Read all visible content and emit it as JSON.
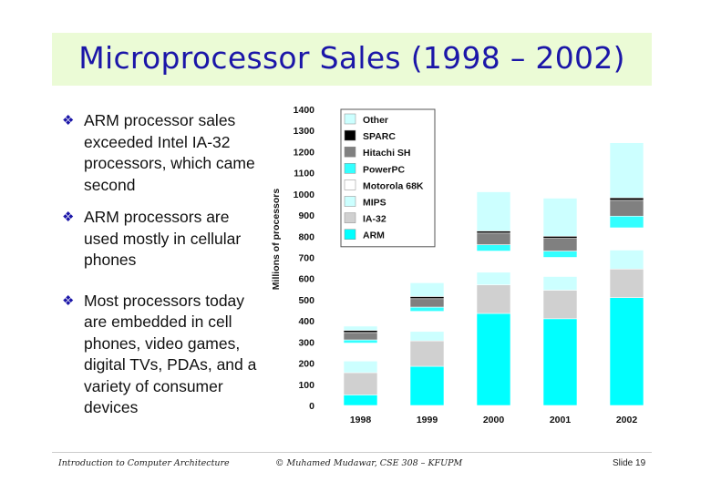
{
  "slide": {
    "title": "Microprocessor Sales (1998 – 2002)",
    "bullet_symbol": "❖",
    "bullets": [
      "ARM processor sales exceeded Intel IA-32 processors, which came second",
      "ARM processors are used mostly in cellular phones",
      "Most processors today are embedded in cell phones, video games, digital TVs, PDAs, and a variety of consumer devices"
    ],
    "footer_left": "Introduction to Computer Architecture",
    "footer_mid": "© Muhamed Mudawar, CSE 308 – KFUPM",
    "footer_right": "Slide 19"
  },
  "chart_data": {
    "type": "bar",
    "stacked": true,
    "title": "",
    "xlabel": "",
    "ylabel": "Millions of processors",
    "ylim": [
      0,
      1400
    ],
    "yticks": [
      0,
      100,
      200,
      300,
      400,
      500,
      600,
      700,
      800,
      900,
      1000,
      1100,
      1200,
      1300,
      1400
    ],
    "categories": [
      "1998",
      "1999",
      "2000",
      "2001",
      "2002"
    ],
    "legend_position": "top-left",
    "grid": false,
    "series": [
      {
        "name": "ARM",
        "color": "#00ffff",
        "values": [
          50,
          185,
          435,
          410,
          510
        ]
      },
      {
        "name": "IA-32",
        "color": "#d0d0d0",
        "values": [
          105,
          120,
          135,
          135,
          135
        ]
      },
      {
        "name": "MIPS",
        "color": "#ccffff",
        "values": [
          55,
          45,
          60,
          65,
          90
        ]
      },
      {
        "name": "Motorola 68K",
        "color": "#ffffff",
        "values": [
          85,
          95,
          100,
          90,
          105
        ]
      },
      {
        "name": "PowerPC",
        "color": "#33ffff",
        "values": [
          15,
          20,
          30,
          30,
          55
        ]
      },
      {
        "name": "Hitachi SH",
        "color": "#808080",
        "values": [
          35,
          40,
          55,
          60,
          75
        ]
      },
      {
        "name": "SPARC",
        "color": "#000000",
        "values": [
          10,
          10,
          10,
          10,
          12
        ]
      },
      {
        "name": "Other",
        "color": "#ccffff",
        "values": [
          20,
          65,
          185,
          180,
          260
        ]
      }
    ]
  }
}
